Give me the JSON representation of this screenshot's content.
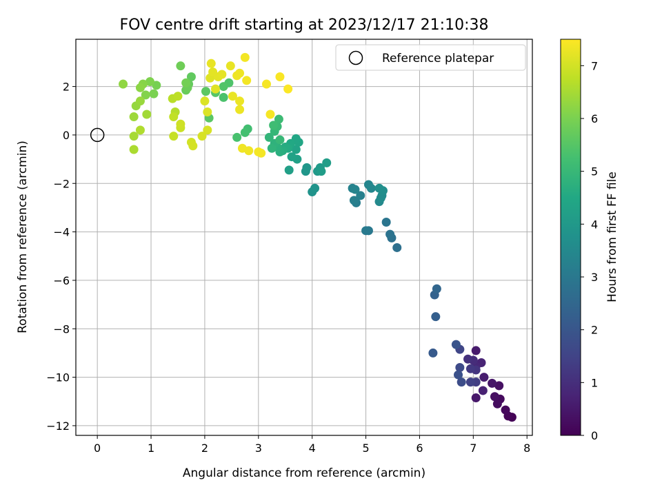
{
  "chart_data": {
    "type": "scatter",
    "title": "FOV centre drift starting at 2023/12/17 21:10:38",
    "xlabel": "Angular distance from reference (arcmin)",
    "ylabel": "Rotation from reference (arcmin)",
    "xlim": [
      -0.4,
      8.1
    ],
    "ylim": [
      -12.4,
      3.95
    ],
    "xticks": [
      0,
      1,
      2,
      3,
      4,
      5,
      6,
      7,
      8
    ],
    "yticks": [
      -12,
      -10,
      -8,
      -6,
      -4,
      -2,
      0,
      2
    ],
    "grid": true,
    "legend": {
      "placement": "top-right",
      "entries": [
        "Reference platepar"
      ]
    },
    "reference_point": {
      "x": 0,
      "y": 0
    },
    "colorbar": {
      "label": "Hours from first FF file",
      "colormap": "viridis",
      "range": [
        0,
        7.5
      ],
      "ticks": [
        0,
        1,
        2,
        3,
        4,
        5,
        6,
        7
      ]
    },
    "points": [
      {
        "x": 7.72,
        "y": -11.65,
        "c": 0.05
      },
      {
        "x": 7.65,
        "y": -11.6,
        "c": 0.1
      },
      {
        "x": 7.6,
        "y": -11.35,
        "c": 0.15
      },
      {
        "x": 7.5,
        "y": -10.9,
        "c": 0.2
      },
      {
        "x": 7.45,
        "y": -11.1,
        "c": 0.25
      },
      {
        "x": 7.4,
        "y": -10.8,
        "c": 0.3
      },
      {
        "x": 7.48,
        "y": -10.35,
        "c": 0.35
      },
      {
        "x": 7.35,
        "y": -10.25,
        "c": 0.45
      },
      {
        "x": 7.05,
        "y": -10.85,
        "c": 0.5
      },
      {
        "x": 7.05,
        "y": -8.9,
        "c": 0.55
      },
      {
        "x": 7.2,
        "y": -10.0,
        "c": 0.6
      },
      {
        "x": 7.18,
        "y": -10.55,
        "c": 0.7
      },
      {
        "x": 7.15,
        "y": -9.4,
        "c": 0.75
      },
      {
        "x": 7.05,
        "y": -9.55,
        "c": 0.85
      },
      {
        "x": 7.0,
        "y": -9.3,
        "c": 0.95
      },
      {
        "x": 6.9,
        "y": -9.25,
        "c": 1.05
      },
      {
        "x": 7.05,
        "y": -9.7,
        "c": 1.15
      },
      {
        "x": 6.95,
        "y": -9.65,
        "c": 1.25
      },
      {
        "x": 7.05,
        "y": -10.2,
        "c": 1.35
      },
      {
        "x": 6.95,
        "y": -10.2,
        "c": 1.45
      },
      {
        "x": 6.75,
        "y": -8.85,
        "c": 1.55
      },
      {
        "x": 6.75,
        "y": -9.6,
        "c": 1.7
      },
      {
        "x": 6.78,
        "y": -10.2,
        "c": 1.75
      },
      {
        "x": 6.72,
        "y": -9.9,
        "c": 1.85
      },
      {
        "x": 6.68,
        "y": -8.65,
        "c": 1.95
      },
      {
        "x": 6.25,
        "y": -9.0,
        "c": 2.1
      },
      {
        "x": 6.3,
        "y": -7.5,
        "c": 2.25
      },
      {
        "x": 6.28,
        "y": -6.6,
        "c": 2.35
      },
      {
        "x": 6.32,
        "y": -6.35,
        "c": 2.45
      },
      {
        "x": 5.58,
        "y": -4.65,
        "c": 2.75
      },
      {
        "x": 5.48,
        "y": -4.25,
        "c": 2.8
      },
      {
        "x": 5.45,
        "y": -4.1,
        "c": 2.85
      },
      {
        "x": 5.38,
        "y": -3.6,
        "c": 2.9
      },
      {
        "x": 5.05,
        "y": -3.95,
        "c": 3.0
      },
      {
        "x": 5.0,
        "y": -3.95,
        "c": 3.05
      },
      {
        "x": 4.82,
        "y": -2.8,
        "c": 3.15
      },
      {
        "x": 4.78,
        "y": -2.7,
        "c": 3.2
      },
      {
        "x": 4.9,
        "y": -2.5,
        "c": 3.25
      },
      {
        "x": 4.75,
        "y": -2.2,
        "c": 3.3
      },
      {
        "x": 4.8,
        "y": -2.25,
        "c": 3.35
      },
      {
        "x": 5.05,
        "y": -2.05,
        "c": 3.4
      },
      {
        "x": 5.1,
        "y": -2.2,
        "c": 3.45
      },
      {
        "x": 5.25,
        "y": -2.75,
        "c": 3.5
      },
      {
        "x": 5.3,
        "y": -2.5,
        "c": 3.55
      },
      {
        "x": 5.28,
        "y": -2.6,
        "c": 3.6
      },
      {
        "x": 5.32,
        "y": -2.3,
        "c": 3.65
      },
      {
        "x": 5.25,
        "y": -2.2,
        "c": 3.7
      },
      {
        "x": 4.0,
        "y": -2.35,
        "c": 3.8
      },
      {
        "x": 4.05,
        "y": -2.2,
        "c": 3.85
      },
      {
        "x": 3.88,
        "y": -1.5,
        "c": 3.9
      },
      {
        "x": 3.9,
        "y": -1.35,
        "c": 3.95
      },
      {
        "x": 4.1,
        "y": -1.5,
        "c": 4.0
      },
      {
        "x": 4.15,
        "y": -1.35,
        "c": 4.05
      },
      {
        "x": 4.17,
        "y": -1.5,
        "c": 4.1
      },
      {
        "x": 4.27,
        "y": -1.15,
        "c": 4.15
      },
      {
        "x": 3.57,
        "y": -1.45,
        "c": 4.2
      },
      {
        "x": 3.72,
        "y": -1.0,
        "c": 4.25
      },
      {
        "x": 3.62,
        "y": -0.9,
        "c": 4.3
      },
      {
        "x": 3.7,
        "y": -0.6,
        "c": 4.35
      },
      {
        "x": 3.75,
        "y": -0.3,
        "c": 4.4
      },
      {
        "x": 3.7,
        "y": -0.15,
        "c": 4.45
      },
      {
        "x": 3.6,
        "y": -0.35,
        "c": 4.5
      },
      {
        "x": 3.55,
        "y": -0.55,
        "c": 4.55
      },
      {
        "x": 3.5,
        "y": -0.5,
        "c": 4.6
      },
      {
        "x": 3.45,
        "y": -0.65,
        "c": 4.65
      },
      {
        "x": 3.4,
        "y": -0.7,
        "c": 4.7
      },
      {
        "x": 3.35,
        "y": -0.5,
        "c": 4.75
      },
      {
        "x": 3.3,
        "y": -0.35,
        "c": 4.8
      },
      {
        "x": 3.25,
        "y": -0.55,
        "c": 4.85
      },
      {
        "x": 3.2,
        "y": -0.1,
        "c": 4.9
      },
      {
        "x": 3.3,
        "y": 0.15,
        "c": 4.95
      },
      {
        "x": 3.4,
        "y": -0.2,
        "c": 5.0
      },
      {
        "x": 3.35,
        "y": 0.35,
        "c": 5.05
      },
      {
        "x": 3.38,
        "y": 0.65,
        "c": 5.1
      },
      {
        "x": 3.28,
        "y": 0.4,
        "c": 5.15
      },
      {
        "x": 2.8,
        "y": 0.25,
        "c": 5.2
      },
      {
        "x": 2.75,
        "y": 0.1,
        "c": 5.25
      },
      {
        "x": 2.6,
        "y": -0.1,
        "c": 5.3
      },
      {
        "x": 2.35,
        "y": 1.55,
        "c": 5.35
      },
      {
        "x": 2.45,
        "y": 2.15,
        "c": 5.4
      },
      {
        "x": 2.35,
        "y": 2.0,
        "c": 5.45
      },
      {
        "x": 2.2,
        "y": 1.75,
        "c": 5.5
      },
      {
        "x": 2.08,
        "y": 0.7,
        "c": 5.55
      },
      {
        "x": 2.02,
        "y": 1.8,
        "c": 5.6
      },
      {
        "x": 1.75,
        "y": 2.4,
        "c": 5.65
      },
      {
        "x": 1.7,
        "y": 2.1,
        "c": 5.7
      },
      {
        "x": 1.65,
        "y": 1.85,
        "c": 5.75
      },
      {
        "x": 1.68,
        "y": 1.95,
        "c": 5.8
      },
      {
        "x": 1.55,
        "y": 2.85,
        "c": 5.85
      },
      {
        "x": 1.65,
        "y": 2.15,
        "c": 5.9
      },
      {
        "x": 1.1,
        "y": 2.05,
        "c": 5.95
      },
      {
        "x": 1.05,
        "y": 1.7,
        "c": 6.0
      },
      {
        "x": 0.98,
        "y": 2.2,
        "c": 6.05
      },
      {
        "x": 0.9,
        "y": 1.65,
        "c": 6.1
      },
      {
        "x": 0.85,
        "y": 2.1,
        "c": 6.15
      },
      {
        "x": 0.8,
        "y": 1.95,
        "c": 6.2
      },
      {
        "x": 0.48,
        "y": 2.1,
        "c": 6.25
      },
      {
        "x": 0.72,
        "y": 1.2,
        "c": 6.3
      },
      {
        "x": 0.8,
        "y": 1.4,
        "c": 6.35
      },
      {
        "x": 0.68,
        "y": 0.75,
        "c": 6.4
      },
      {
        "x": 0.92,
        "y": 0.85,
        "c": 6.45
      },
      {
        "x": 0.68,
        "y": -0.05,
        "c": 6.5
      },
      {
        "x": 0.68,
        "y": -0.6,
        "c": 6.55
      },
      {
        "x": 0.8,
        "y": 0.2,
        "c": 6.6
      },
      {
        "x": 1.45,
        "y": 0.95,
        "c": 6.65
      },
      {
        "x": 1.4,
        "y": 1.5,
        "c": 6.7
      },
      {
        "x": 1.5,
        "y": 1.6,
        "c": 6.75
      },
      {
        "x": 1.42,
        "y": 0.75,
        "c": 6.8
      },
      {
        "x": 1.42,
        "y": -0.05,
        "c": 6.85
      },
      {
        "x": 1.55,
        "y": 0.3,
        "c": 6.9
      },
      {
        "x": 1.55,
        "y": 0.45,
        "c": 6.95
      },
      {
        "x": 1.75,
        "y": -0.3,
        "c": 7.0
      },
      {
        "x": 1.78,
        "y": -0.45,
        "c": 7.02
      },
      {
        "x": 1.95,
        "y": -0.05,
        "c": 7.05
      },
      {
        "x": 2.05,
        "y": 0.2,
        "c": 7.05
      },
      {
        "x": 2.0,
        "y": 1.4,
        "c": 7.1
      },
      {
        "x": 2.05,
        "y": 0.95,
        "c": 7.1
      },
      {
        "x": 2.1,
        "y": 2.35,
        "c": 7.15
      },
      {
        "x": 2.2,
        "y": 1.9,
        "c": 7.15
      },
      {
        "x": 2.15,
        "y": 2.6,
        "c": 7.2
      },
      {
        "x": 2.25,
        "y": 2.4,
        "c": 7.2
      },
      {
        "x": 2.32,
        "y": 2.5,
        "c": 7.22
      },
      {
        "x": 2.12,
        "y": 2.95,
        "c": 7.25
      },
      {
        "x": 2.48,
        "y": 2.85,
        "c": 7.25
      },
      {
        "x": 2.52,
        "y": 1.6,
        "c": 7.27
      },
      {
        "x": 2.65,
        "y": 1.05,
        "c": 7.3
      },
      {
        "x": 2.65,
        "y": 1.4,
        "c": 7.3
      },
      {
        "x": 2.6,
        "y": 2.45,
        "c": 7.32
      },
      {
        "x": 2.65,
        "y": 2.55,
        "c": 7.32
      },
      {
        "x": 2.7,
        "y": -0.55,
        "c": 7.35
      },
      {
        "x": 2.82,
        "y": -0.65,
        "c": 7.35
      },
      {
        "x": 2.75,
        "y": 3.2,
        "c": 7.38
      },
      {
        "x": 2.78,
        "y": 2.25,
        "c": 7.38
      },
      {
        "x": 3.0,
        "y": -0.7,
        "c": 7.4
      },
      {
        "x": 3.05,
        "y": -0.75,
        "c": 7.4
      },
      {
        "x": 3.15,
        "y": 2.1,
        "c": 7.42
      },
      {
        "x": 3.22,
        "y": 0.85,
        "c": 7.42
      },
      {
        "x": 3.4,
        "y": 2.4,
        "c": 7.45
      },
      {
        "x": 3.55,
        "y": 1.9,
        "c": 7.48
      }
    ]
  }
}
